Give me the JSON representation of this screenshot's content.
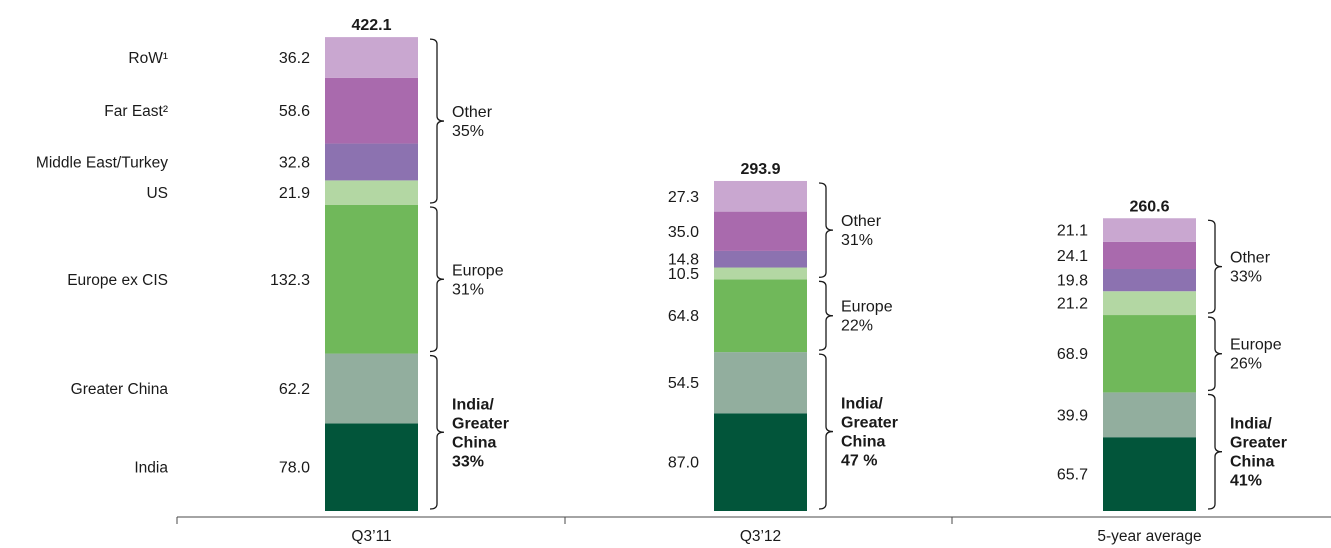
{
  "chart_data": {
    "type": "bar",
    "stacked": true,
    "categories": [
      "Q3’11",
      "Q3’12",
      "5-year average"
    ],
    "totals": [
      422.1,
      293.9,
      260.6
    ],
    "series": [
      {
        "name": "India",
        "color": "#02553a",
        "values": [
          78.0,
          87.0,
          65.7
        ]
      },
      {
        "name": "Greater China",
        "color": "#92ae9e",
        "values": [
          62.2,
          54.5,
          39.9
        ]
      },
      {
        "name": "Europe ex CIS",
        "color": "#70b85a",
        "values": [
          132.3,
          64.8,
          68.9
        ]
      },
      {
        "name": "US",
        "color": "#b3d7a3",
        "values": [
          21.9,
          10.5,
          21.2
        ]
      },
      {
        "name": "Middle East/Turkey",
        "color": "#8c72b0",
        "values": [
          32.8,
          14.8,
          19.8
        ]
      },
      {
        "name": "Far East",
        "color": "#a96aad",
        "values": [
          58.6,
          35.0,
          24.1
        ]
      },
      {
        "name": "RoW",
        "color": "#c9a7d0",
        "values": [
          36.2,
          27.3,
          21.1
        ]
      }
    ],
    "series_labels": [
      "India",
      "Greater China",
      "Europe ex CIS",
      "US",
      "Middle East/Turkey",
      "Far East²",
      "RoW¹"
    ],
    "groups": [
      {
        "key": "india_china",
        "from": 0,
        "to": 1,
        "bold": true,
        "lines": [
          [
            "India/",
            "Greater",
            "China",
            "33%"
          ],
          [
            "India/",
            "Greater",
            "China",
            "47 %"
          ],
          [
            "India/",
            "Greater",
            "China",
            "41%"
          ]
        ]
      },
      {
        "key": "europe",
        "from": 2,
        "to": 2,
        "bold": false,
        "lines": [
          [
            "Europe",
            "31%"
          ],
          [
            "Europe",
            "22%"
          ],
          [
            "Europe",
            "26%"
          ]
        ]
      },
      {
        "key": "other",
        "from": 3,
        "to": 6,
        "bold": false,
        "lines": [
          [
            "Other",
            "35%"
          ],
          [
            "Other",
            "31%"
          ],
          [
            "Other",
            "33%"
          ]
        ]
      }
    ],
    "xlabel": "",
    "ylabel": "",
    "ylim": [
      0,
      422.1
    ],
    "grid": false,
    "legend": "left"
  }
}
